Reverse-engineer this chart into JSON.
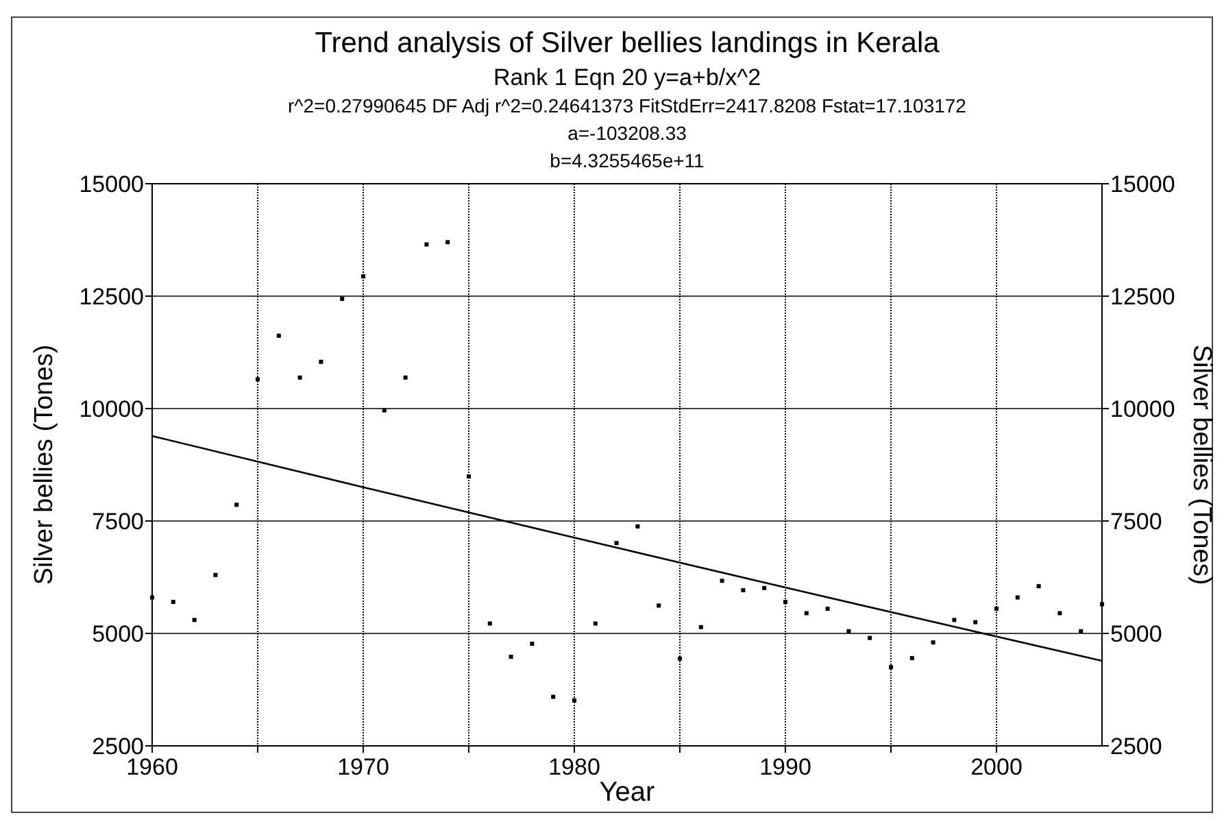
{
  "chart_data": {
    "type": "scatter",
    "title": "Trend analysis of Silver bellies landings in Kerala",
    "subtitle": "Rank 1  Eqn 20  y=a+b/x^2",
    "annotations": [
      "r^2=0.27990645  DF Adj r^2=0.24641373  FitStdErr=2417.8208  Fstat=17.103172",
      "a=-103208.33",
      "b=4.3255465e+11"
    ],
    "xlabel": "Year",
    "ylabel": "Silver bellies (Tones)",
    "y2label": "Silver bellies (Tones)",
    "x": [
      1960,
      1961,
      1962,
      1963,
      1964,
      1965,
      1966,
      1967,
      1968,
      1969,
      1970,
      1971,
      1972,
      1973,
      1974,
      1975,
      1976,
      1977,
      1978,
      1979,
      1980,
      1981,
      1982,
      1983,
      1984,
      1985,
      1986,
      1987,
      1988,
      1989,
      1990,
      1991,
      1992,
      1993,
      1994,
      1995,
      1996,
      1997,
      1998,
      1999,
      2000,
      2001,
      2002,
      2003,
      2004,
      2005
    ],
    "series": [
      {
        "color": "#000000",
        "marker": "square",
        "values": [
          5800,
          5700,
          5300,
          6300,
          7860,
          10650,
          11620,
          10690,
          11040,
          12440,
          12940,
          9960,
          10690,
          13650,
          13700,
          8490,
          5220,
          4480,
          4770,
          3590,
          3510,
          5220,
          7010,
          7380,
          5620,
          4440,
          5140,
          6170,
          5960,
          6010,
          5700,
          5450,
          5550,
          5050,
          4900,
          4250,
          4450,
          4800,
          5300,
          5250,
          5550,
          5800,
          6050,
          5450,
          5050,
          5650
        ]
      },
      {
        "type": "line",
        "color": "#000000",
        "marker": "none",
        "line_style": "solid",
        "x": [
          1960,
          1970,
          1980,
          1990,
          2000,
          2005
        ],
        "values": [
          9390,
          8250,
          7130,
          6020,
          4930,
          4390
        ]
      }
    ],
    "xlim": [
      1960,
      2005
    ],
    "xticks": [
      1960,
      {
        "value": 1965,
        "label": null
      },
      1970,
      {
        "value": 1975,
        "label": null
      },
      1980,
      {
        "value": 1985,
        "label": null
      },
      1990,
      {
        "value": 1995,
        "label": null
      },
      2000
    ],
    "ylim": [
      2500,
      15000
    ],
    "yticks": [
      2500,
      5000,
      7500,
      10000,
      12500,
      15000
    ],
    "y2lim": [
      2500,
      15000
    ],
    "y2ticks": [
      2500,
      5000,
      7500,
      10000,
      12500,
      15000
    ],
    "grid": true
  }
}
